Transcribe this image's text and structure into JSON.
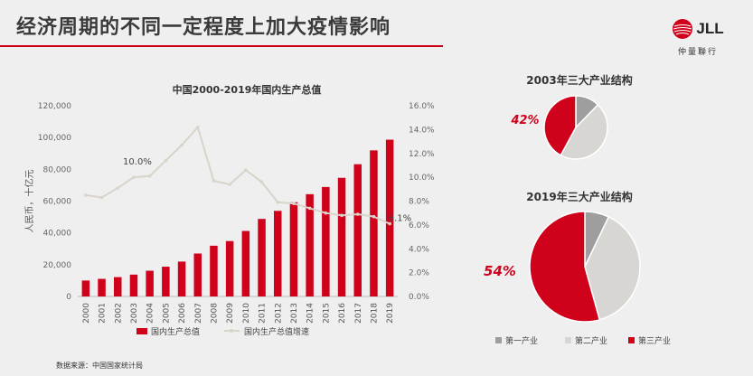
{
  "header": {
    "title": "经济周期的不同一定程度上加大疫情影响",
    "brand_text": "JLL",
    "brand_tagline": "仲量聯行"
  },
  "source": "数据来源：中国国家统计局",
  "colors": {
    "accent": "#d0021b",
    "primary_grey": "#9e9e9e",
    "secondary": "#d8d6d2",
    "line": "#d9d4ca"
  },
  "chart_data": [
    {
      "type": "bar",
      "title": "中国2000-2019年国内生产总值",
      "ylabel": "人民币，十亿元",
      "ylim": [
        0,
        120000
      ],
      "y2lim": [
        0.0,
        16.0
      ],
      "yticks": [
        "0",
        "20,000",
        "40,000",
        "60,000",
        "80,000",
        "100,000",
        "120,000"
      ],
      "y2ticks": [
        "0.0%",
        "2.0%",
        "4.0%",
        "6.0%",
        "8.0%",
        "10.0%",
        "12.0%",
        "14.0%",
        "16.0%"
      ],
      "categories": [
        "2000",
        "2001",
        "2002",
        "2003",
        "2004",
        "2005",
        "2006",
        "2007",
        "2008",
        "2009",
        "2010",
        "2011",
        "2012",
        "2013",
        "2014",
        "2015",
        "2016",
        "2017",
        "2018",
        "2019"
      ],
      "series": [
        {
          "name": "国内生产总值",
          "type": "bar",
          "axis": "left",
          "values": [
            10028,
            11086,
            12172,
            13742,
            16184,
            18732,
            21944,
            27009,
            31924,
            34852,
            41212,
            48794,
            53858,
            59296,
            64356,
            68886,
            74640,
            83204,
            91928,
            98652
          ]
        },
        {
          "name": "国内生产总值增速",
          "type": "line",
          "axis": "right",
          "values": [
            8.5,
            8.3,
            9.1,
            10.0,
            10.1,
            11.4,
            12.7,
            14.2,
            9.7,
            9.4,
            10.6,
            9.6,
            7.9,
            7.8,
            7.4,
            7.0,
            6.8,
            6.9,
            6.7,
            6.1
          ]
        }
      ],
      "annotations": [
        "10.0%",
        "6.1%"
      ],
      "legend": "bottom"
    },
    {
      "type": "pie",
      "title": "2003年三大产业结构",
      "slices": [
        {
          "name": "第一产业",
          "value": 12.3
        },
        {
          "name": "第二产业",
          "value": 45.6
        },
        {
          "name": "第三产业",
          "value": 42.1
        }
      ],
      "label": "42%"
    },
    {
      "type": "pie",
      "title": "2019年三大产业结构",
      "slices": [
        {
          "name": "第一产业",
          "value": 7.1
        },
        {
          "name": "第二产业",
          "value": 38.6
        },
        {
          "name": "第三产业",
          "value": 54.3
        }
      ],
      "label": "54%"
    }
  ],
  "pie_legend": [
    "第一产业",
    "第二产业",
    "第三产业"
  ]
}
